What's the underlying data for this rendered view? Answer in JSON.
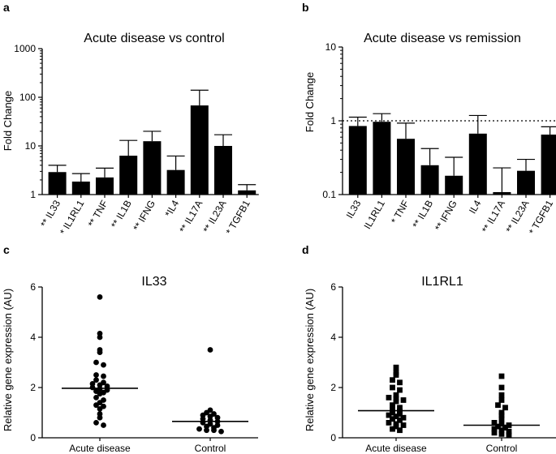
{
  "chart_data": [
    {
      "panel": "a",
      "type": "bar",
      "title": "Acute disease vs control",
      "ylabel": "Fold Change",
      "yscale": "log",
      "ylim": [
        1,
        1000
      ],
      "yticks": [
        "1",
        "10",
        "100",
        "1000"
      ],
      "categories": [
        "** IL33",
        "* IL1RL1",
        "** TNF",
        "** IL1B",
        "** IFNG",
        "*IL4",
        "** IL17A",
        "** IL23A",
        "* TGFB1"
      ],
      "values": [
        2.9,
        1.85,
        2.25,
        6.3,
        12.5,
        3.2,
        68,
        10,
        1.22
      ],
      "error_upper": [
        4.0,
        2.7,
        3.5,
        13,
        20,
        6.2,
        140,
        17,
        1.6
      ]
    },
    {
      "panel": "b",
      "type": "bar",
      "title": "Acute disease vs remission",
      "ylabel": "Fold Change",
      "yscale": "log",
      "ylim": [
        0.1,
        10
      ],
      "yticks": [
        "0.1",
        "1",
        "10"
      ],
      "reference_line": 1,
      "categories": [
        "IL33",
        "IL1RL1",
        "* TNF",
        "** IL1B",
        "** IFNG",
        "IL4",
        "** IL17A",
        "** IL23A",
        "* TGFB1"
      ],
      "values": [
        0.85,
        0.97,
        0.57,
        0.25,
        0.18,
        0.67,
        0.108,
        0.21,
        0.65
      ],
      "error_upper": [
        1.12,
        1.25,
        0.93,
        0.42,
        0.32,
        1.18,
        0.23,
        0.3,
        0.83
      ]
    },
    {
      "panel": "c",
      "type": "scatter",
      "title": "IL33",
      "ylabel": "Relative gene expression (AU)",
      "ylim": [
        0,
        6
      ],
      "yticks": [
        "0",
        "2",
        "4",
        "6"
      ],
      "marker": "circle",
      "categories": [
        "Acute disease",
        "Control"
      ],
      "medians": [
        1.97,
        0.65
      ],
      "groups": [
        [
          5.6,
          4.15,
          4.0,
          3.5,
          3.4,
          3.0,
          2.9,
          2.5,
          2.45,
          2.3,
          2.2,
          2.15,
          2.1,
          2.05,
          2.0,
          1.95,
          1.9,
          1.85,
          1.8,
          1.75,
          1.6,
          1.5,
          1.4,
          1.3,
          1.25,
          1.15,
          0.95,
          0.8,
          0.6,
          0.5
        ],
        [
          3.5,
          1.1,
          1.0,
          0.95,
          0.9,
          0.85,
          0.8,
          0.75,
          0.7,
          0.65,
          0.6,
          0.55,
          0.5,
          0.45,
          0.4,
          0.35,
          0.3,
          0.3,
          0.25
        ]
      ]
    },
    {
      "panel": "d",
      "type": "scatter",
      "title": "IL1RL1",
      "ylabel": "Relative gene expression (AU)",
      "ylim": [
        0,
        6
      ],
      "yticks": [
        "0",
        "2",
        "4",
        "6"
      ],
      "marker": "square",
      "categories": [
        "Acute disease",
        "Control"
      ],
      "medians": [
        1.08,
        0.5
      ],
      "groups": [
        [
          2.8,
          2.6,
          2.5,
          2.3,
          2.2,
          2.0,
          1.9,
          1.7,
          1.6,
          1.55,
          1.5,
          1.45,
          1.3,
          1.2,
          1.1,
          1.05,
          1.0,
          0.95,
          0.9,
          0.85,
          0.8,
          0.75,
          0.7,
          0.6,
          0.55,
          0.5,
          0.45,
          0.35,
          0.3
        ],
        [
          2.45,
          2.0,
          1.7,
          1.5,
          1.3,
          1.2,
          1.0,
          0.9,
          0.75,
          0.6,
          0.55,
          0.5,
          0.45,
          0.4,
          0.35,
          0.3,
          0.25,
          0.2,
          0.15,
          0.1
        ]
      ]
    }
  ]
}
